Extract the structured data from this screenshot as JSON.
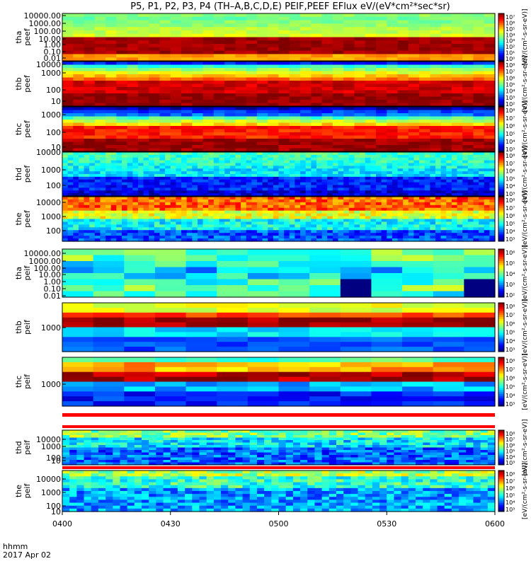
{
  "title": "P5, P1, P2, P3, P4 (TH–A,B,C,D,E) PEIF,PEEF EFlux eV/(eV*cm²*sec*sr)",
  "x_axis": {
    "label_line1": "hhmm",
    "label_line2": "2017 Apr 02",
    "ticks": [
      "0400",
      "0430",
      "0500",
      "0530",
      "0600"
    ]
  },
  "chart_data": [
    {
      "type": "heatmap",
      "panel": "tha peef",
      "ylabel": [
        "tha",
        "peef"
      ],
      "yticks": [
        "10000.00",
        "1000.00",
        "100.00",
        "10.00",
        "1.00",
        "0.10",
        "0.01"
      ],
      "cbar_ticks": [
        "10⁷",
        "10⁶",
        "10⁵",
        "10⁴",
        "10³",
        "10²",
        "10¹",
        "10⁰"
      ],
      "cbar_label": "[eV/(cm²-s-sr-eV)]"
    },
    {
      "type": "heatmap",
      "panel": "thb peef",
      "ylabel": [
        "thb",
        "peef"
      ],
      "yticks": [
        "10000",
        "1000",
        "100",
        "10"
      ],
      "cbar_ticks": [
        "10⁸",
        "10⁷",
        "10⁶",
        "10⁵",
        "10⁴",
        "10³",
        "10²"
      ],
      "cbar_label": "[eV/(cm²-s-sr-eV)]"
    },
    {
      "type": "heatmap",
      "panel": "thc peef",
      "ylabel": [
        "thc",
        "peef"
      ],
      "yticks": [
        "1000",
        "100",
        "10"
      ],
      "cbar_ticks": [
        "10⁸",
        "10⁷",
        "10⁶",
        "10⁵",
        "10⁴",
        "10³"
      ],
      "cbar_label": "[eV/(cm²-s-sr-eV)]"
    },
    {
      "type": "heatmap",
      "panel": "thd peef",
      "ylabel": [
        "thd",
        "peef"
      ],
      "yticks": [
        "10000",
        "1000",
        "100"
      ],
      "cbar_ticks": [
        "10⁸",
        "10⁷",
        "10⁶",
        "10⁵",
        "10⁴",
        "10³"
      ],
      "cbar_label": "[eV/(cm²-s-sr-eV)]"
    },
    {
      "type": "heatmap",
      "panel": "the peef",
      "ylabel": [
        "the",
        "peef"
      ],
      "yticks": [
        "10000",
        "1000",
        "100"
      ],
      "cbar_ticks": [
        "10⁸",
        "10⁷",
        "10⁶",
        "10⁵",
        "10⁴",
        "10³"
      ],
      "cbar_label": "[eV/(cm²-s-sr-eV)]"
    },
    {
      "type": "heatmap",
      "panel": "tha peif",
      "ylabel": [
        "tha",
        "peif"
      ],
      "yticks": [
        "10000.00",
        "1000.00",
        "100.00",
        "10.00",
        "1.00",
        "0.10",
        "0.01"
      ],
      "cbar_ticks": [
        "10⁶",
        "10⁵",
        "10⁴",
        "10³",
        "10²"
      ],
      "cbar_label": "[eV/(cm²-s-sr-eV)]"
    },
    {
      "type": "heatmap",
      "panel": "thb peif",
      "ylabel": [
        "thb",
        "peif"
      ],
      "yticks": [
        "1000"
      ],
      "cbar_ticks": [
        "10⁸",
        "10⁷",
        "10⁶",
        "10⁵",
        "10⁴",
        "10³"
      ],
      "cbar_label": "[eV/(cm²-s-sr-eV)]"
    },
    {
      "type": "heatmap",
      "panel": "thc peif",
      "ylabel": [
        "thc",
        "peif"
      ],
      "yticks": [
        "1000"
      ],
      "cbar_ticks": [
        "10⁸",
        "10⁷",
        "10⁶",
        "10⁵",
        "10⁴",
        "10³"
      ],
      "cbar_label": "[eV/(cm²-s-sr-eV)]"
    },
    {
      "type": "heatmap",
      "panel": "thd peif",
      "ylabel": [
        "thd",
        "peif"
      ],
      "yticks": [
        "10000",
        "1000",
        "100",
        "10"
      ],
      "cbar_ticks": [
        "10⁸",
        "10⁷",
        "10⁶",
        "10⁵",
        "10⁴",
        "10³"
      ],
      "cbar_label": "[eV/(cm²-s-sr-eV)]"
    },
    {
      "type": "heatmap",
      "panel": "the peif",
      "ylabel": [
        "the",
        "peif"
      ],
      "yticks": [
        "10000",
        "1000",
        "100",
        "10"
      ],
      "cbar_ticks": [
        "10⁸",
        "10⁷",
        "10⁶",
        "10⁵",
        "10⁴",
        "10³"
      ],
      "cbar_label": "[eV/(cm²-s-sr-eV)]"
    }
  ]
}
